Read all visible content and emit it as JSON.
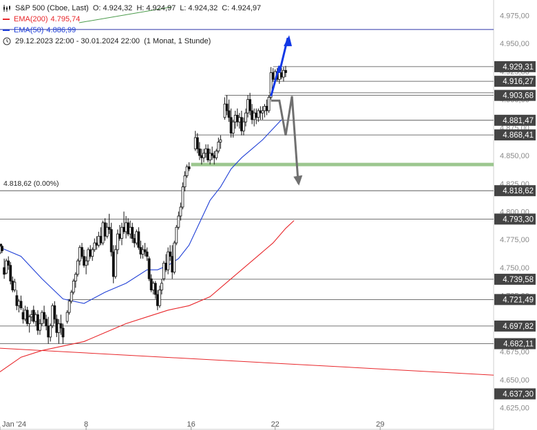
{
  "header": {
    "symbol": "S&P 500 (Cboe, Last)",
    "open": "O: 4.924,32",
    "high": "H: 4.924,97",
    "low": "L: 4.924,32",
    "close": "C: 4.924,97",
    "ema200_label": "EMA(200)",
    "ema200_value": "4.795,74",
    "ema50_label": "EMA(50)",
    "ema50_value": "4.886,99",
    "range": "29.12.2023 22:00 - 30.01.2024 22:00",
    "interval": "(1 Monat, 1 Stunde)"
  },
  "colors": {
    "ema200": "#e8262a",
    "ema50": "#1f3fd6",
    "up_arrow": "#1238e6",
    "down_arrow": "#707070",
    "support_band": "#9cc78f",
    "top_line": "#2a33a8",
    "label_bg": "#444444"
  },
  "chart_data": {
    "type": "candlestick",
    "y_axis": {
      "min": 4625,
      "max": 4975,
      "ticks": [
        {
          "v": 4975,
          "label": "4.975,00"
        },
        {
          "v": 4950,
          "label": "4.950,00"
        },
        {
          "v": 4925,
          "label": "4.925,00"
        },
        {
          "v": 4900,
          "label": "4.900,00"
        },
        {
          "v": 4875,
          "label": "4.875,00"
        },
        {
          "v": 4850,
          "label": "4.850,00"
        },
        {
          "v": 4825,
          "label": "4.825,00"
        },
        {
          "v": 4800,
          "label": "4.800,00"
        },
        {
          "v": 4775,
          "label": "4.775,00"
        },
        {
          "v": 4750,
          "label": "4.750,00"
        },
        {
          "v": 4725,
          "label": "4.725,00"
        },
        {
          "v": 4700,
          "label": "4.700,00"
        },
        {
          "v": 4675,
          "label": "4.675,00"
        },
        {
          "v": 4650,
          "label": "4.650,00"
        },
        {
          "v": 4625,
          "label": "4.625,00"
        }
      ]
    },
    "x_axis": {
      "ticks": [
        {
          "label": "Jan '24",
          "x": 0
        },
        {
          "label": "8",
          "x": 41
        },
        {
          "label": "16",
          "x": 91
        },
        {
          "label": "22",
          "x": 131
        },
        {
          "label": "29",
          "x": 181
        }
      ],
      "x_max": 235
    },
    "level_labels": [
      {
        "value": 4929.31,
        "label": "4.929,31"
      },
      {
        "value": 4916.27,
        "label": "4.916,27"
      },
      {
        "value": 4903.68,
        "label": "4.903,68"
      },
      {
        "value": 4881.47,
        "label": "4.881,47"
      },
      {
        "value": 4868.41,
        "label": "4.868,41"
      },
      {
        "value": 4818.62,
        "label": "4.818,62"
      },
      {
        "value": 4793.3,
        "label": "4.793,30"
      },
      {
        "value": 4739.58,
        "label": "4.739,58"
      },
      {
        "value": 4721.49,
        "label": "4.721,49"
      },
      {
        "value": 4697.82,
        "label": "4.697,82"
      },
      {
        "value": 4682.11,
        "label": "4.682,11"
      },
      {
        "value": 4637.3,
        "label": "4.637,30"
      }
    ],
    "fib_label": "4.818,62 (0.00%)",
    "fib_value": 4818.62,
    "top_line": 4962.5,
    "support_band": 4842,
    "candles": [
      [
        0,
        4763,
        4770,
        4762,
        4769
      ],
      [
        1,
        4769,
        4770,
        4763,
        4765
      ],
      [
        2,
        4750,
        4758,
        4740,
        4744
      ],
      [
        3,
        4745,
        4758,
        4744,
        4756
      ],
      [
        4,
        4756,
        4760,
        4748,
        4752
      ],
      [
        5,
        4752,
        4755,
        4735,
        4738
      ],
      [
        6,
        4738,
        4742,
        4728,
        4730
      ],
      [
        7,
        4730,
        4740,
        4728,
        4737
      ],
      [
        8,
        4725,
        4730,
        4712,
        4716
      ],
      [
        9,
        4716,
        4722,
        4710,
        4720
      ],
      [
        10,
        4720,
        4725,
        4712,
        4714
      ],
      [
        11,
        4710,
        4714,
        4700,
        4704
      ],
      [
        12,
        4704,
        4716,
        4702,
        4712
      ],
      [
        13,
        4712,
        4715,
        4698,
        4700
      ],
      [
        14,
        4700,
        4708,
        4692,
        4706
      ],
      [
        15,
        4706,
        4712,
        4702,
        4708
      ],
      [
        16,
        4712,
        4716,
        4700,
        4702
      ],
      [
        17,
        4702,
        4710,
        4698,
        4708
      ],
      [
        18,
        4708,
        4712,
        4690,
        4694
      ],
      [
        19,
        4694,
        4704,
        4690,
        4700
      ],
      [
        20,
        4700,
        4712,
        4698,
        4710
      ],
      [
        21,
        4710,
        4716,
        4700,
        4704
      ],
      [
        22,
        4704,
        4708,
        4694,
        4698
      ],
      [
        23,
        4698,
        4706,
        4682,
        4688
      ],
      [
        24,
        4688,
        4700,
        4684,
        4698
      ],
      [
        25,
        4698,
        4718,
        4696,
        4716
      ],
      [
        26,
        4716,
        4720,
        4700,
        4704
      ],
      [
        27,
        4704,
        4708,
        4688,
        4692
      ],
      [
        28,
        4692,
        4704,
        4682,
        4700
      ],
      [
        29,
        4700,
        4708,
        4690,
        4696
      ],
      [
        30,
        4696,
        4700,
        4682,
        4688
      ],
      [
        32,
        4702,
        4712,
        4700,
        4710
      ],
      [
        33,
        4710,
        4722,
        4708,
        4720
      ],
      [
        34,
        4720,
        4730,
        4718,
        4728
      ],
      [
        35,
        4728,
        4740,
        4726,
        4738
      ],
      [
        36,
        4738,
        4746,
        4732,
        4744
      ],
      [
        37,
        4744,
        4758,
        4742,
        4756
      ],
      [
        38,
        4756,
        4770,
        4752,
        4768
      ],
      [
        39,
        4768,
        4772,
        4758,
        4760
      ],
      [
        40,
        4760,
        4766,
        4750,
        4752
      ],
      [
        41,
        4752,
        4760,
        4744,
        4756
      ],
      [
        42,
        4756,
        4768,
        4752,
        4766
      ],
      [
        43,
        4766,
        4770,
        4758,
        4760
      ],
      [
        44,
        4760,
        4768,
        4756,
        4766
      ],
      [
        45,
        4766,
        4776,
        4764,
        4772
      ],
      [
        46,
        4772,
        4778,
        4766,
        4770
      ],
      [
        47,
        4770,
        4782,
        4768,
        4778
      ],
      [
        48,
        4778,
        4786,
        4770,
        4772
      ],
      [
        49,
        4772,
        4792,
        4770,
        4790
      ],
      [
        50,
        4790,
        4794,
        4774,
        4778
      ],
      [
        51,
        4778,
        4790,
        4776,
        4786
      ],
      [
        52,
        4786,
        4798,
        4780,
        4784
      ],
      [
        53,
        4784,
        4790,
        4760,
        4764
      ],
      [
        54,
        4764,
        4770,
        4736,
        4742
      ],
      [
        55,
        4742,
        4770,
        4740,
        4766
      ],
      [
        56,
        4766,
        4784,
        4762,
        4780
      ],
      [
        57,
        4780,
        4788,
        4774,
        4776
      ],
      [
        58,
        4776,
        4790,
        4770,
        4786
      ],
      [
        59,
        4786,
        4800,
        4780,
        4782
      ],
      [
        60,
        4782,
        4796,
        4776,
        4790
      ],
      [
        61,
        4790,
        4794,
        4778,
        4780
      ],
      [
        62,
        4780,
        4792,
        4776,
        4786
      ],
      [
        63,
        4786,
        4790,
        4772,
        4776
      ],
      [
        64,
        4776,
        4780,
        4768,
        4772
      ],
      [
        65,
        4772,
        4784,
        4770,
        4782
      ],
      [
        66,
        4782,
        4786,
        4766,
        4768
      ],
      [
        67,
        4768,
        4774,
        4758,
        4762
      ],
      [
        68,
        4762,
        4770,
        4758,
        4766
      ],
      [
        69,
        4766,
        4772,
        4760,
        4764
      ],
      [
        70,
        4764,
        4768,
        4756,
        4760
      ],
      [
        71,
        4758,
        4760,
        4738,
        4740
      ],
      [
        72,
        4740,
        4744,
        4728,
        4730
      ],
      [
        73,
        4730,
        4738,
        4726,
        4736
      ],
      [
        74,
        4736,
        4738,
        4722,
        4726
      ],
      [
        75,
        4726,
        4730,
        4712,
        4716
      ],
      [
        76,
        4716,
        4734,
        4714,
        4730
      ],
      [
        77,
        4730,
        4740,
        4726,
        4736
      ],
      [
        78,
        4740,
        4756,
        4738,
        4754
      ],
      [
        79,
        4754,
        4762,
        4746,
        4748
      ],
      [
        80,
        4748,
        4768,
        4744,
        4764
      ],
      [
        81,
        4764,
        4770,
        4756,
        4760
      ],
      [
        82,
        4760,
        4770,
        4740,
        4746
      ],
      [
        83,
        4746,
        4774,
        4744,
        4772
      ],
      [
        84,
        4772,
        4788,
        4770,
        4786
      ],
      [
        85,
        4786,
        4800,
        4784,
        4796
      ],
      [
        86,
        4796,
        4808,
        4792,
        4804
      ],
      [
        87,
        4804,
        4826,
        4802,
        4822
      ],
      [
        88,
        4822,
        4836,
        4818,
        4832
      ],
      [
        89,
        4832,
        4842,
        4830,
        4840
      ],
      [
        90,
        4840,
        4844,
        4836,
        4838
      ],
      [
        93,
        4856,
        4872,
        4854,
        4866
      ],
      [
        94,
        4866,
        4870,
        4852,
        4856
      ],
      [
        95,
        4856,
        4862,
        4846,
        4850
      ],
      [
        96,
        4850,
        4856,
        4842,
        4848
      ],
      [
        97,
        4848,
        4856,
        4844,
        4852
      ],
      [
        98,
        4852,
        4860,
        4848,
        4856
      ],
      [
        99,
        4856,
        4860,
        4844,
        4846
      ],
      [
        100,
        4846,
        4856,
        4842,
        4852
      ],
      [
        101,
        4852,
        4858,
        4846,
        4850
      ],
      [
        102,
        4850,
        4854,
        4842,
        4848
      ],
      [
        103,
        4848,
        4856,
        4846,
        4854
      ],
      [
        104,
        4854,
        4866,
        4852,
        4862
      ],
      [
        105,
        4862,
        4868,
        4856,
        4864
      ],
      [
        107,
        4884,
        4902,
        4882,
        4896
      ],
      [
        108,
        4896,
        4904,
        4886,
        4890
      ],
      [
        109,
        4890,
        4900,
        4880,
        4884
      ],
      [
        110,
        4884,
        4892,
        4866,
        4870
      ],
      [
        111,
        4870,
        4882,
        4866,
        4880
      ],
      [
        112,
        4880,
        4890,
        4874,
        4886
      ],
      [
        113,
        4886,
        4892,
        4876,
        4880
      ],
      [
        114,
        4880,
        4888,
        4874,
        4884
      ],
      [
        115,
        4884,
        4890,
        4868,
        4872
      ],
      [
        116,
        4872,
        4884,
        4868,
        4880
      ],
      [
        117,
        4880,
        4892,
        4876,
        4888
      ],
      [
        118,
        4888,
        4904,
        4884,
        4900
      ],
      [
        119,
        4900,
        4906,
        4886,
        4890
      ],
      [
        120,
        4890,
        4896,
        4878,
        4882
      ],
      [
        121,
        4882,
        4892,
        4876,
        4888
      ],
      [
        122,
        4888,
        4892,
        4878,
        4884
      ],
      [
        123,
        4884,
        4892,
        4880,
        4890
      ],
      [
        124,
        4890,
        4894,
        4882,
        4888
      ],
      [
        125,
        4888,
        4894,
        4882,
        4890
      ],
      [
        126,
        4890,
        4896,
        4884,
        4894
      ],
      [
        127,
        4894,
        4900,
        4886,
        4890
      ],
      [
        128,
        4890,
        4904,
        4888,
        4902
      ],
      [
        129,
        4902,
        4929,
        4900,
        4924
      ],
      [
        130,
        4924,
        4928,
        4916,
        4918
      ],
      [
        131,
        4918,
        4927,
        4914,
        4925
      ],
      [
        132,
        4925,
        4928,
        4916,
        4918
      ],
      [
        133,
        4918,
        4927,
        4914,
        4924
      ],
      [
        134,
        4924,
        4928,
        4918,
        4920
      ],
      [
        135,
        4920,
        4929,
        4916,
        4926
      ],
      [
        136,
        4926,
        4930,
        4920,
        4924
      ]
    ],
    "ema50": [
      [
        0,
        4768
      ],
      [
        10,
        4760
      ],
      [
        20,
        4740
      ],
      [
        30,
        4722
      ],
      [
        40,
        4718
      ],
      [
        50,
        4728
      ],
      [
        60,
        4736
      ],
      [
        70,
        4748
      ],
      [
        75,
        4748
      ],
      [
        80,
        4752
      ],
      [
        85,
        4758
      ],
      [
        90,
        4770
      ],
      [
        95,
        4790
      ],
      [
        100,
        4810
      ],
      [
        105,
        4822
      ],
      [
        110,
        4838
      ],
      [
        115,
        4848
      ],
      [
        120,
        4856
      ],
      [
        125,
        4864
      ],
      [
        130,
        4874
      ],
      [
        134,
        4882
      ]
    ],
    "ema200": [
      [
        0,
        4657
      ],
      [
        10,
        4670
      ],
      [
        20,
        4676
      ],
      [
        30,
        4680
      ],
      [
        40,
        4684
      ],
      [
        50,
        4692
      ],
      [
        60,
        4700
      ],
      [
        70,
        4706
      ],
      [
        80,
        4712
      ],
      [
        90,
        4716
      ],
      [
        100,
        4724
      ],
      [
        110,
        4740
      ],
      [
        120,
        4756
      ],
      [
        130,
        4772
      ],
      [
        136,
        4785
      ],
      [
        140,
        4792
      ]
    ],
    "red_trendline": [
      [
        0,
        4678
      ],
      [
        235,
        4654
      ]
    ],
    "up_arrow": [
      [
        129,
        4903
      ],
      [
        133,
        4930
      ],
      [
        133,
        4924
      ],
      [
        137,
        4955
      ]
    ],
    "down_arrow": [
      [
        129,
        4899
      ],
      [
        133,
        4899
      ],
      [
        136,
        4868
      ],
      [
        139,
        4903
      ],
      [
        142,
        4825
      ]
    ]
  }
}
